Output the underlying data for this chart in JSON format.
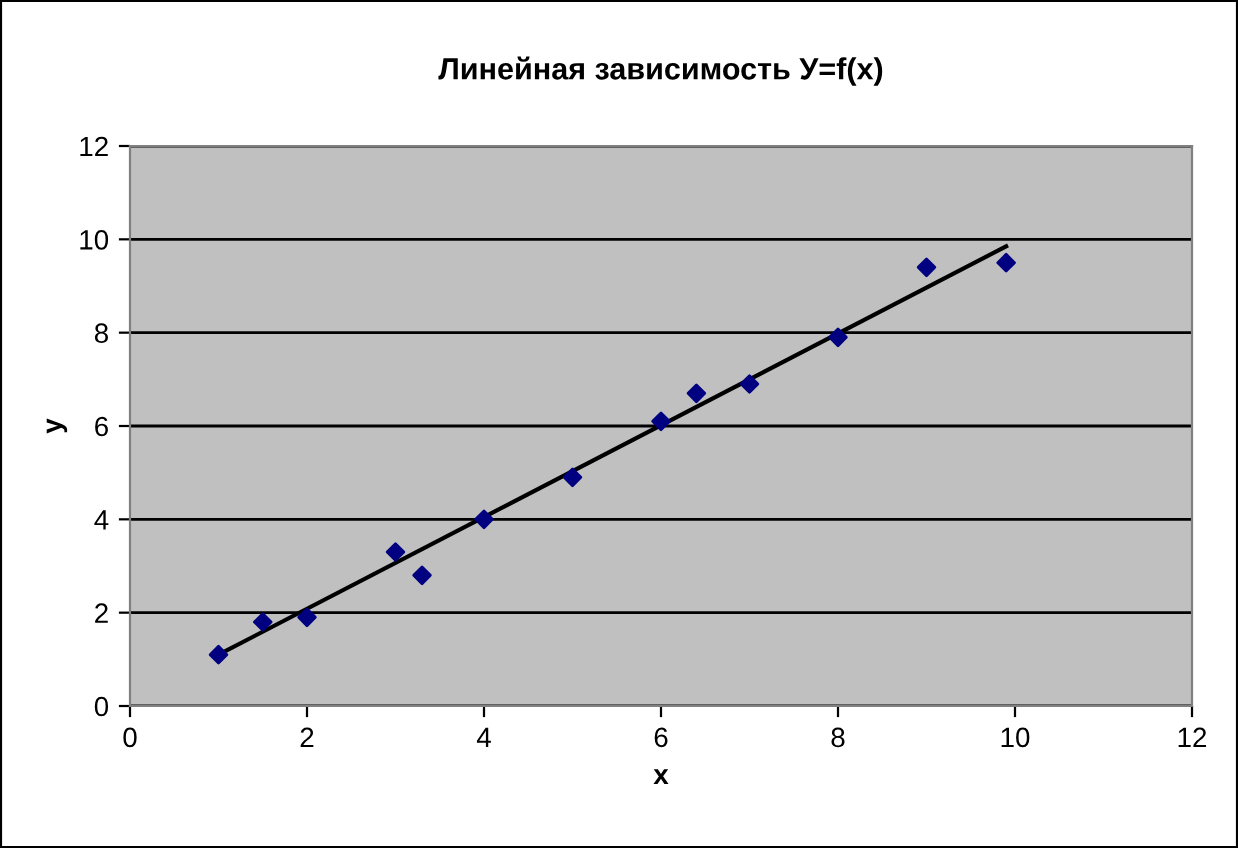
{
  "chart_data": {
    "type": "scatter",
    "title": "Линейная зависимость У=f(x)",
    "xlabel": "x",
    "ylabel": "y",
    "xlim": [
      0,
      12
    ],
    "xticks": [
      0,
      2,
      4,
      6,
      8,
      10,
      12
    ],
    "ylim": [
      0,
      12
    ],
    "yticks": [
      0,
      2,
      4,
      6,
      8,
      10,
      12
    ],
    "grid": "y",
    "legend": false,
    "series": [
      {
        "marker": "diamond",
        "color": "#000080",
        "x": [
          1,
          1.5,
          2,
          3,
          3.3,
          4,
          5,
          6,
          6.4,
          7,
          8,
          9,
          9.9
        ],
        "values": [
          1.1,
          1.8,
          1.9,
          3.3,
          2.8,
          4.0,
          4.9,
          6.1,
          6.7,
          6.9,
          7.9,
          9.4,
          9.5
        ]
      },
      {
        "type": "line",
        "color": "#000000",
        "x": [
          1,
          9.9
        ],
        "values": [
          1.1,
          9.85
        ]
      }
    ]
  }
}
